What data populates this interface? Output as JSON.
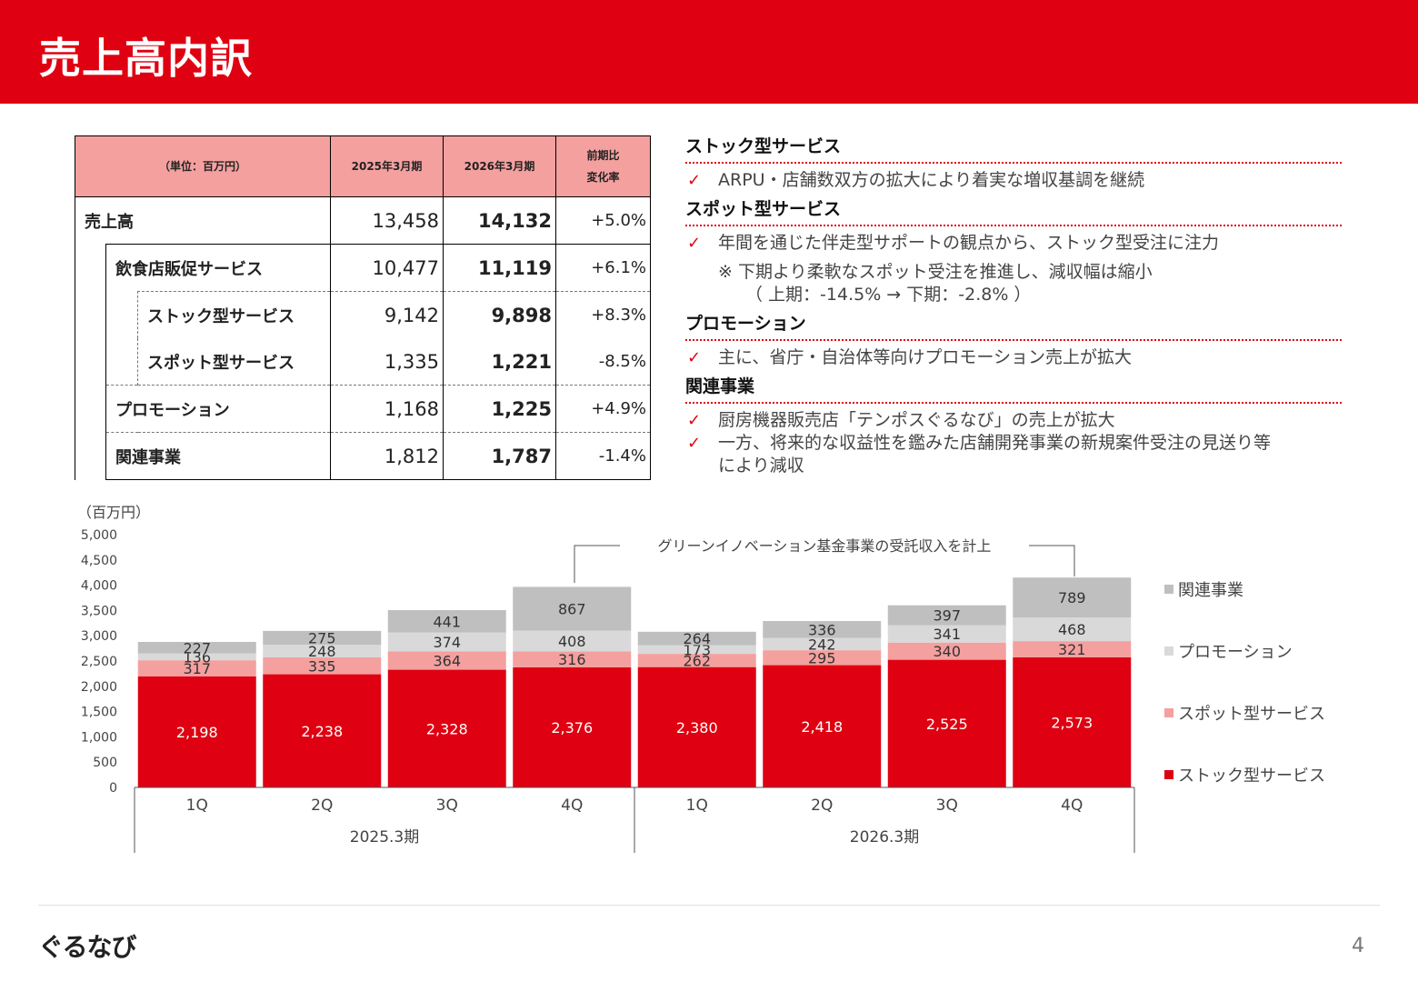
{
  "title": "売上高内訳",
  "table": {
    "unit_label": "（単位：百万円）",
    "col_fy2025": "2025年3月期",
    "col_fy2026": "2026年3月期",
    "col_change_line1": "前期比",
    "col_change_line2": "変化率",
    "rows": [
      {
        "label": "売上高",
        "fy2025": "13,458",
        "fy2026": "14,132",
        "change": "+5.0%"
      },
      {
        "label": "飲食店販促サービス",
        "fy2025": "10,477",
        "fy2026": "11,119",
        "change": "+6.1%"
      },
      {
        "label": "ストック型サービス",
        "fy2025": "9,142",
        "fy2026": "9,898",
        "change": "+8.3%"
      },
      {
        "label": "スポット型サービス",
        "fy2025": "1,335",
        "fy2026": "1,221",
        "change": "-8.5%"
      },
      {
        "label": "プロモーション",
        "fy2025": "1,168",
        "fy2026": "1,225",
        "change": "+4.9%"
      },
      {
        "label": "関連事業",
        "fy2025": "1,812",
        "fy2026": "1,787",
        "change": "-1.4%"
      }
    ]
  },
  "commentary": {
    "stock": {
      "heading": "ストック型サービス",
      "items": [
        "ARPU・店舗数双方の拡大により着実な増収基調を継続"
      ]
    },
    "spot": {
      "heading": "スポット型サービス",
      "items": [
        "年間を通じた伴走型サポートの観点から、ストック型受注に注力"
      ],
      "note1": "※ 下期より柔軟なスポット受注を推進し、減収幅は縮小",
      "note2": "（ 上期：-14.5%  →  下期：-2.8% ）"
    },
    "promo": {
      "heading": "プロモーション",
      "items": [
        "主に、省庁・自治体等向けプロモーション売上が拡大"
      ]
    },
    "related": {
      "heading": "関連事業",
      "items": [
        "厨房機器販売店「テンポスぐるなび」の売上が拡大",
        "一方、将来的な収益性を鑑みた店舗開発事業の新規案件受注の見送り等",
        "により減収"
      ]
    },
    "check_mark": "✓"
  },
  "chart_data": {
    "type": "bar",
    "stacked": true,
    "ylabel": "（百万円）",
    "ylim": [
      0,
      5000
    ],
    "yticks": [
      "5,000",
      "4,500",
      "4,000",
      "3,500",
      "3,000",
      "2,500",
      "2,000",
      "1,500",
      "1,000",
      "500",
      "0"
    ],
    "categories": [
      "1Q",
      "2Q",
      "3Q",
      "4Q",
      "1Q",
      "2Q",
      "3Q",
      "4Q"
    ],
    "groups": [
      "2025.3期",
      "2026.3期"
    ],
    "annotation": "グリーンイノベーション基金事業の受託収入を計上",
    "legend_position": "right",
    "series": [
      {
        "name": "ストック型サービス",
        "color": "#df0011",
        "values": [
          2198,
          2238,
          2328,
          2376,
          2380,
          2418,
          2525,
          2573
        ],
        "labels": [
          "2,198",
          "2,238",
          "2,328",
          "2,376",
          "2,380",
          "2,418",
          "2,525",
          "2,573"
        ]
      },
      {
        "name": "スポット型サービス",
        "color": "#f4a09f",
        "values": [
          317,
          335,
          364,
          316,
          262,
          295,
          340,
          321
        ],
        "labels": [
          "317",
          "335",
          "364",
          "316",
          "262",
          "295",
          "340",
          "321"
        ]
      },
      {
        "name": "プロモーション",
        "color": "#d9d9d9",
        "values": [
          136,
          248,
          374,
          408,
          173,
          242,
          341,
          468
        ],
        "labels": [
          "136",
          "248",
          "374",
          "408",
          "173",
          "242",
          "341",
          "468"
        ]
      },
      {
        "name": "関連事業",
        "color": "#bfbfbf",
        "values": [
          227,
          275,
          441,
          867,
          264,
          336,
          397,
          789
        ],
        "labels": [
          "227",
          "275",
          "441",
          "867",
          "264",
          "336",
          "397",
          "789"
        ]
      }
    ]
  },
  "footer": {
    "logo": "ぐるなび",
    "page": "4"
  }
}
